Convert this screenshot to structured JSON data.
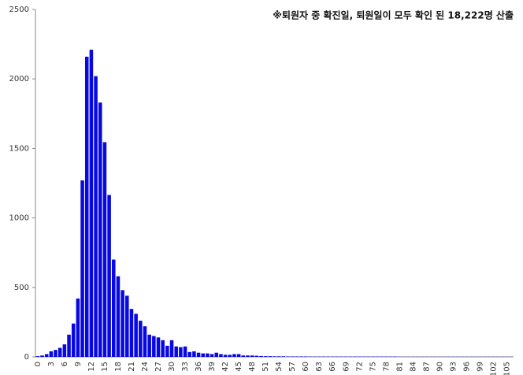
{
  "chart_data": {
    "type": "bar",
    "annotation": "※퇴원자 중 확진일, 퇴원일이 모두 확인 된 18,222명 산출",
    "categories": [
      0,
      null,
      null,
      3,
      null,
      null,
      6,
      null,
      null,
      9,
      null,
      null,
      12,
      null,
      null,
      15,
      null,
      null,
      18,
      null,
      null,
      21,
      null,
      null,
      24,
      null,
      null,
      27,
      null,
      null,
      30,
      null,
      null,
      33,
      null,
      null,
      36,
      null,
      null,
      39,
      null,
      null,
      42,
      null,
      null,
      45,
      null,
      null,
      48,
      null,
      null,
      51,
      null,
      null,
      54,
      null,
      null,
      57,
      null,
      null,
      60,
      null,
      null,
      63,
      null,
      null,
      66,
      null,
      null,
      69,
      null,
      null,
      72,
      null,
      null,
      75,
      null,
      null,
      78,
      null,
      null,
      81,
      null,
      null,
      84,
      null,
      null,
      87,
      null,
      null,
      90,
      null,
      null,
      93,
      null,
      null,
      96,
      null,
      null,
      99,
      null,
      null,
      102,
      null,
      null,
      105,
      null
    ],
    "values": [
      5,
      10,
      20,
      40,
      50,
      65,
      90,
      160,
      240,
      420,
      1270,
      2160,
      2210,
      2020,
      1830,
      1545,
      1165,
      700,
      580,
      480,
      440,
      345,
      310,
      260,
      220,
      160,
      150,
      140,
      120,
      80,
      120,
      75,
      70,
      75,
      35,
      40,
      30,
      25,
      25,
      20,
      30,
      20,
      15,
      15,
      20,
      20,
      10,
      10,
      10,
      8,
      6,
      5,
      5,
      4,
      4,
      4,
      3,
      3,
      3,
      3,
      3,
      2,
      2,
      2,
      2,
      2,
      2,
      2,
      2,
      2,
      2,
      2,
      2,
      2,
      2,
      2,
      2,
      2,
      2,
      2,
      2,
      1,
      1,
      1,
      1,
      1,
      1,
      1,
      1,
      1,
      1,
      1,
      1,
      1,
      1,
      1,
      1,
      1,
      1,
      1,
      1,
      1,
      1,
      1,
      1,
      1,
      1
    ],
    "color": "#0808e0",
    "ylim": [
      0,
      2500
    ],
    "yticks": [
      0,
      500,
      1000,
      1500,
      2000,
      2500
    ],
    "grid": false
  }
}
